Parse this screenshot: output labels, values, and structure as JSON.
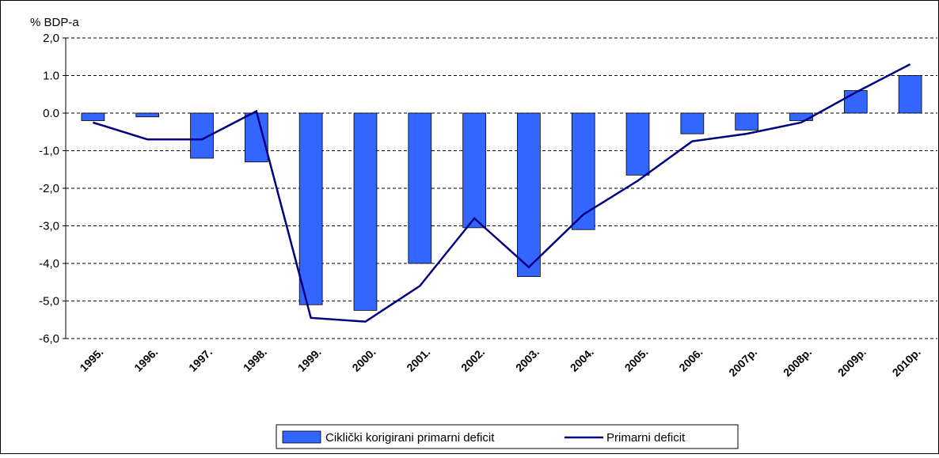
{
  "chart_data": {
    "type": "bar",
    "y_label": "% BDP-a",
    "categories": [
      "1995.",
      "1996.",
      "1997.",
      "1998.",
      "1999.",
      "2000.",
      "2001.",
      "2002.",
      "2003.",
      "2004.",
      "2005.",
      "2006.",
      "2007p.",
      "2008p.",
      "2009p.",
      "2010p."
    ],
    "series": [
      {
        "name": "Ciklički korigirani primarni deficit",
        "type": "bar",
        "color": "#3366ff",
        "values": [
          -0.2,
          -0.1,
          -1.2,
          -1.3,
          -5.1,
          -5.25,
          -4.0,
          -3.05,
          -4.35,
          -3.1,
          -1.65,
          -0.55,
          -0.45,
          -0.2,
          0.6,
          1.0
        ]
      },
      {
        "name": "Primarni deficit",
        "type": "line",
        "color": "#000080",
        "values": [
          -0.25,
          -0.7,
          -0.7,
          0.05,
          -5.45,
          -5.55,
          -4.6,
          -2.8,
          -4.1,
          -2.7,
          -1.8,
          -0.75,
          -0.55,
          -0.25,
          0.55,
          1.3
        ]
      }
    ],
    "ylim": [
      -6,
      2
    ],
    "yticks": [
      {
        "value": 2,
        "label": "2,0"
      },
      {
        "value": 1,
        "label": "1.0"
      },
      {
        "value": 0,
        "label": "0.0"
      },
      {
        "value": -1,
        "label": "-1,0"
      },
      {
        "value": -2,
        "label": "-2,0"
      },
      {
        "value": -3,
        "label": "-3,0"
      },
      {
        "value": -4,
        "label": "-4,0"
      },
      {
        "value": -5,
        "label": "-5,0"
      },
      {
        "value": -6,
        "label": "-6,0"
      }
    ],
    "grid": true,
    "legend": "bottom"
  }
}
